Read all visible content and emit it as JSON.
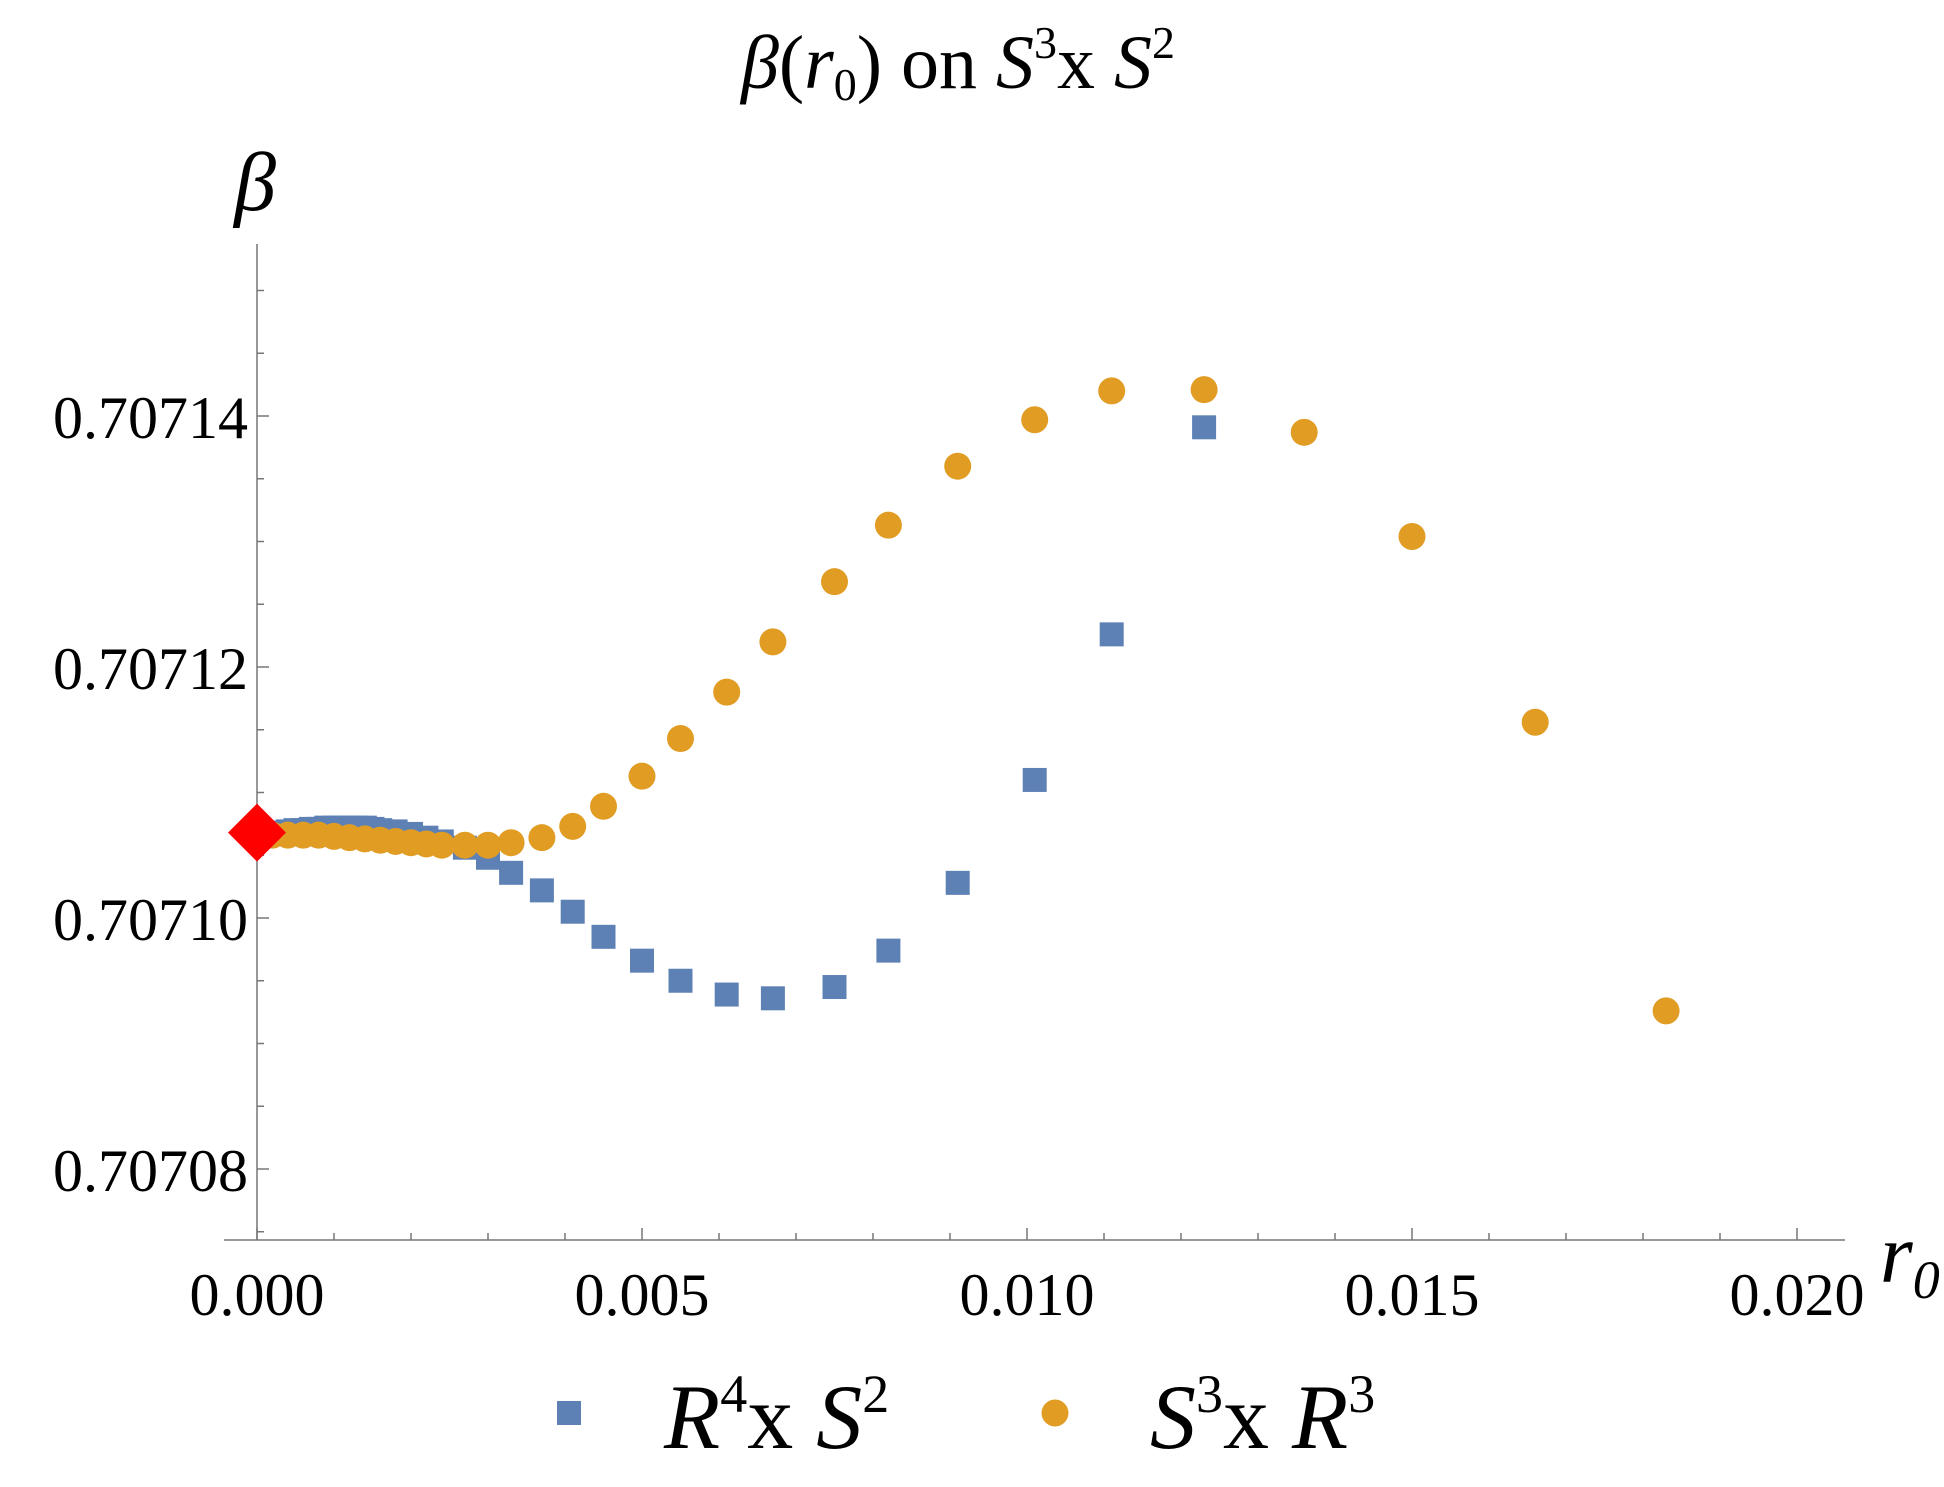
{
  "chart_data": {
    "type": "scatter",
    "title": {
      "beta": "β",
      "open": "(",
      "r": "r",
      "sub0": "0",
      "close": ")",
      "on": " on ",
      "S": "S",
      "sup3": "3",
      "x": "x ",
      "S2": "S",
      "sup2": "2"
    },
    "ylabel": "β",
    "xlabel": {
      "r": "r",
      "sub": "0"
    },
    "xlim": [
      0,
      0.0207
    ],
    "ylim": [
      0.707075,
      0.707155
    ],
    "xticks": [
      {
        "value": 0.0,
        "label": "0.000"
      },
      {
        "value": 0.005,
        "label": "0.005"
      },
      {
        "value": 0.01,
        "label": "0.010"
      },
      {
        "value": 0.015,
        "label": "0.015"
      },
      {
        "value": 0.02,
        "label": "0.020"
      }
    ],
    "yticks": [
      {
        "value": 0.70708,
        "label": "0.70708"
      },
      {
        "value": 0.7071,
        "label": "0.70710"
      },
      {
        "value": 0.70712,
        "label": "0.70712"
      },
      {
        "value": 0.70714,
        "label": "0.70714"
      }
    ],
    "series": [
      {
        "name": "R4xS2",
        "legend": {
          "base": "R",
          "sup": "4",
          "mid": "x ",
          "base2": "S",
          "sup2": "2"
        },
        "marker": "square",
        "color": "#5e81b5",
        "x": [
          0.0001,
          0.0002,
          0.0003,
          0.0004,
          0.0005,
          0.0006,
          0.0007,
          0.0008,
          0.0009,
          0.001,
          0.0011,
          0.0012,
          0.0013,
          0.0014,
          0.0015,
          0.0016,
          0.0018,
          0.002,
          0.0022,
          0.0024,
          0.0027,
          0.003,
          0.0033,
          0.0037,
          0.0041,
          0.0045,
          0.005,
          0.0055,
          0.0061,
          0.0067,
          0.0075,
          0.0082,
          0.0091,
          0.0101,
          0.0111,
          0.0123
        ],
        "values": [
          0.7071067,
          0.7071068,
          0.7071068,
          0.7071069,
          0.707107,
          0.707107,
          0.7071071,
          0.7071071,
          0.7071072,
          0.7071072,
          0.7071072,
          0.7071072,
          0.7071072,
          0.7071072,
          0.7071071,
          0.707107,
          0.7071069,
          0.7071067,
          0.7071064,
          0.7071061,
          0.7071056,
          0.7071048,
          0.7071036,
          0.7071022,
          0.7071005,
          0.7070985,
          0.7070966,
          0.707095,
          0.7070939,
          0.7070936,
          0.7070945,
          0.7070974,
          0.7071028,
          0.707111,
          0.7071226,
          0.7071391
        ]
      },
      {
        "name": "S3xR3",
        "legend": {
          "base": "S",
          "sup": "3",
          "mid": "x ",
          "base2": "R",
          "sup2": "3"
        },
        "marker": "circle",
        "color": "#e19c24",
        "x": [
          0.0002,
          0.0004,
          0.0006,
          0.0008,
          0.001,
          0.0012,
          0.0014,
          0.0016,
          0.0018,
          0.002,
          0.0022,
          0.0024,
          0.0027,
          0.003,
          0.0033,
          0.0037,
          0.0041,
          0.0045,
          0.005,
          0.0055,
          0.0061,
          0.0067,
          0.0075,
          0.0082,
          0.0091,
          0.0101,
          0.0111,
          0.0123,
          0.0136,
          0.015,
          0.0166,
          0.0183
        ],
        "values": [
          0.7071066,
          0.7071066,
          0.7071066,
          0.7071066,
          0.7071065,
          0.7071064,
          0.7071063,
          0.7071062,
          0.7071061,
          0.707106,
          0.7071059,
          0.7071058,
          0.7071058,
          0.7071058,
          0.707106,
          0.7071064,
          0.7071073,
          0.7071089,
          0.7071113,
          0.7071143,
          0.707118,
          0.707122,
          0.7071268,
          0.7071313,
          0.707136,
          0.7071397,
          0.707142,
          0.7071421,
          0.7071387,
          0.7071304,
          0.7071156,
          0.7070926
        ]
      }
    ],
    "highlight": {
      "name": "limit-point",
      "marker": "diamond",
      "color": "#ff0000",
      "x": 0.0,
      "value": 0.7071068
    }
  }
}
